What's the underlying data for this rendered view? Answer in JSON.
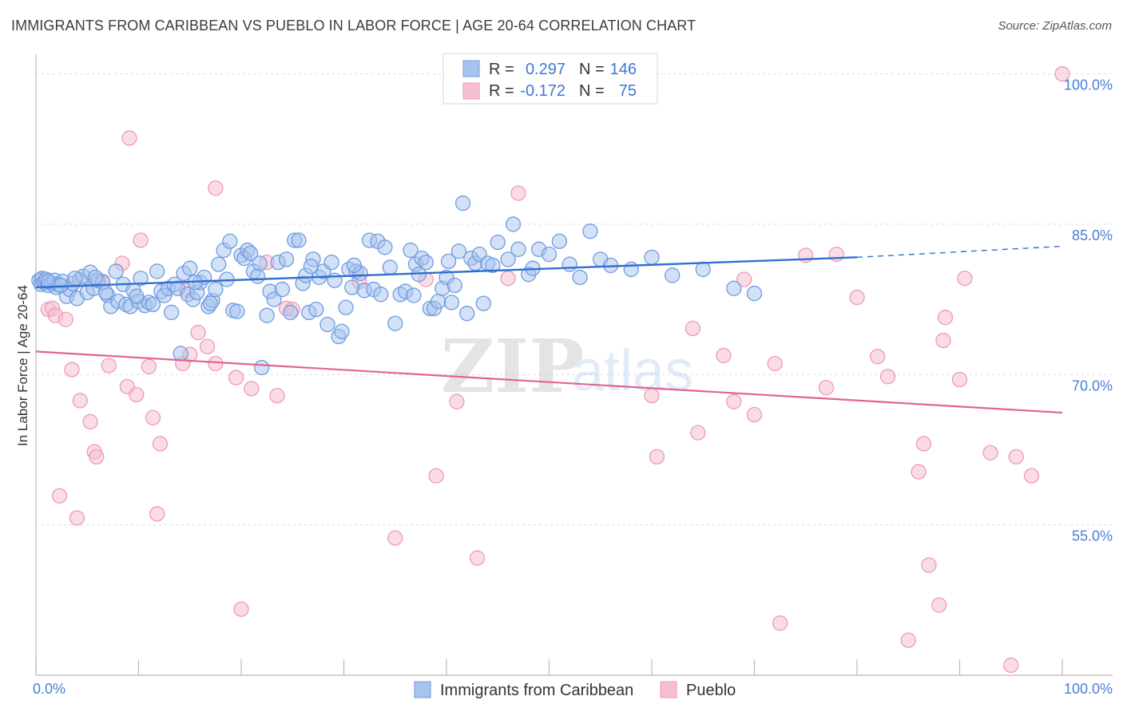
{
  "title": "IMMIGRANTS FROM CARIBBEAN VS PUEBLO IN LABOR FORCE | AGE 20-64 CORRELATION CHART",
  "source": "Source: ZipAtlas.com",
  "watermark": {
    "zip": "ZIP",
    "atlas": "atlas"
  },
  "colors": {
    "blue_fill": "#a8c4ee",
    "blue_stroke": "#6f9be0",
    "blue_line": "#2f6fd0",
    "pink_fill": "#f6bfd0",
    "pink_stroke": "#ee9ab5",
    "pink_line": "#e2648f",
    "tick_text": "#4a7fd6",
    "grid": "#dcdcdc"
  },
  "legend": {
    "rows": [
      {
        "r_label": "R =",
        "r_value": "0.297",
        "n_label": "N =",
        "n_value": "146"
      },
      {
        "r_label": "R =",
        "r_value": "-0.172",
        "n_label": "N =",
        "n_value": "75"
      }
    ]
  },
  "bottom_legend": {
    "series1": "Immigrants from Caribbean",
    "series2": "Pueblo"
  },
  "chart_data": {
    "type": "scatter",
    "xlabel": "",
    "ylabel": "In Labor Force | Age 20-64",
    "xlim": [
      0,
      100
    ],
    "ylim": [
      40,
      101
    ],
    "x_tick_labels": [
      "0.0%",
      "100.0%"
    ],
    "y_ticks": [
      55,
      70,
      85,
      100
    ],
    "y_tick_labels": [
      "55.0%",
      "70.0%",
      "85.0%",
      "100.0%"
    ],
    "series": [
      {
        "name": "Immigrants from Caribbean",
        "R": 0.297,
        "N": 146,
        "trend": {
          "x0": 0,
          "y0": 78.7,
          "x1": 80,
          "y1": 81.7,
          "dashed_to_x": 100,
          "dashed_to_y": 82.8
        },
        "points": [
          [
            0.3,
            79.4
          ],
          [
            0.5,
            79.0
          ],
          [
            0.6,
            79.6
          ],
          [
            0.8,
            79.2
          ],
          [
            1.0,
            79.5
          ],
          [
            1.2,
            78.9
          ],
          [
            1.5,
            79.1
          ],
          [
            1.8,
            79.4
          ],
          [
            2.0,
            78.7
          ],
          [
            2.2,
            79.0
          ],
          [
            2.6,
            79.3
          ],
          [
            3.0,
            77.8
          ],
          [
            3.3,
            78.5
          ],
          [
            3.6,
            79.1
          ],
          [
            4.0,
            77.6
          ],
          [
            4.3,
            79.5
          ],
          [
            4.6,
            79.8
          ],
          [
            5.0,
            78.2
          ],
          [
            5.3,
            80.2
          ],
          [
            5.6,
            78.6
          ],
          [
            6.0,
            79.4
          ],
          [
            6.5,
            79.2
          ],
          [
            7.0,
            77.9
          ],
          [
            7.3,
            76.8
          ],
          [
            7.8,
            80.3
          ],
          [
            8.0,
            77.3
          ],
          [
            8.5,
            79.0
          ],
          [
            8.8,
            77.0
          ],
          [
            9.2,
            76.8
          ],
          [
            9.5,
            78.4
          ],
          [
            10.0,
            77.3
          ],
          [
            10.2,
            79.6
          ],
          [
            10.6,
            76.9
          ],
          [
            11.0,
            77.2
          ],
          [
            11.4,
            77.0
          ],
          [
            11.8,
            80.3
          ],
          [
            12.2,
            78.3
          ],
          [
            12.5,
            77.9
          ],
          [
            12.9,
            78.6
          ],
          [
            13.2,
            76.2
          ],
          [
            13.5,
            79.0
          ],
          [
            13.8,
            78.6
          ],
          [
            14.1,
            72.1
          ],
          [
            14.4,
            80.1
          ],
          [
            14.8,
            78.0
          ],
          [
            15.0,
            80.6
          ],
          [
            15.3,
            77.5
          ],
          [
            15.7,
            78.2
          ],
          [
            16.0,
            79.2
          ],
          [
            16.4,
            79.7
          ],
          [
            16.8,
            76.8
          ],
          [
            17.2,
            77.4
          ],
          [
            17.5,
            78.5
          ],
          [
            17.8,
            81.0
          ],
          [
            18.3,
            82.4
          ],
          [
            18.6,
            79.5
          ],
          [
            18.9,
            83.3
          ],
          [
            19.2,
            76.4
          ],
          [
            19.6,
            76.3
          ],
          [
            20.0,
            81.9
          ],
          [
            20.3,
            81.6
          ],
          [
            20.6,
            82.4
          ],
          [
            20.9,
            82.1
          ],
          [
            21.2,
            80.3
          ],
          [
            21.6,
            79.8
          ],
          [
            22.0,
            70.7
          ],
          [
            22.5,
            75.9
          ],
          [
            22.8,
            78.3
          ],
          [
            23.2,
            77.5
          ],
          [
            23.6,
            81.2
          ],
          [
            24.0,
            78.5
          ],
          [
            24.4,
            81.5
          ],
          [
            24.8,
            76.2
          ],
          [
            25.2,
            83.4
          ],
          [
            25.6,
            83.4
          ],
          [
            26.0,
            79.1
          ],
          [
            26.3,
            79.9
          ],
          [
            26.6,
            76.2
          ],
          [
            27.0,
            81.5
          ],
          [
            27.3,
            76.5
          ],
          [
            27.6,
            79.7
          ],
          [
            28.0,
            80.3
          ],
          [
            28.4,
            75.0
          ],
          [
            28.8,
            81.2
          ],
          [
            29.1,
            79.4
          ],
          [
            29.5,
            73.8
          ],
          [
            29.8,
            74.3
          ],
          [
            30.2,
            76.7
          ],
          [
            30.5,
            80.5
          ],
          [
            30.8,
            78.7
          ],
          [
            31.2,
            80.3
          ],
          [
            31.6,
            80.1
          ],
          [
            32.0,
            78.4
          ],
          [
            32.5,
            83.4
          ],
          [
            32.9,
            78.5
          ],
          [
            33.3,
            83.3
          ],
          [
            33.6,
            78.0
          ],
          [
            34.0,
            82.7
          ],
          [
            34.5,
            80.7
          ],
          [
            35.0,
            75.1
          ],
          [
            35.5,
            78.0
          ],
          [
            36.0,
            78.3
          ],
          [
            36.5,
            82.4
          ],
          [
            37.0,
            81.0
          ],
          [
            37.3,
            80.0
          ],
          [
            37.6,
            81.6
          ],
          [
            38.0,
            81.2
          ],
          [
            38.4,
            76.6
          ],
          [
            38.8,
            76.6
          ],
          [
            39.2,
            77.3
          ],
          [
            39.6,
            78.6
          ],
          [
            40.0,
            79.7
          ],
          [
            40.5,
            77.2
          ],
          [
            40.8,
            78.9
          ],
          [
            41.2,
            82.3
          ],
          [
            41.6,
            87.1
          ],
          [
            42.0,
            76.1
          ],
          [
            42.4,
            81.6
          ],
          [
            42.8,
            81.1
          ],
          [
            43.2,
            82.0
          ],
          [
            43.6,
            77.1
          ],
          [
            44.0,
            81.1
          ],
          [
            45.0,
            83.2
          ],
          [
            46.0,
            81.5
          ],
          [
            46.5,
            85.0
          ],
          [
            47.0,
            82.5
          ],
          [
            48.0,
            80.0
          ],
          [
            48.4,
            80.6
          ],
          [
            49.0,
            82.5
          ],
          [
            50.0,
            82.0
          ],
          [
            51.0,
            83.3
          ],
          [
            52.0,
            81.0
          ],
          [
            53.0,
            79.7
          ],
          [
            54.0,
            84.3
          ],
          [
            55.0,
            81.5
          ],
          [
            58.0,
            80.5
          ],
          [
            62.0,
            79.9
          ],
          [
            65.0,
            80.5
          ],
          [
            68.0,
            78.6
          ],
          [
            70.0,
            78.1
          ],
          [
            1.2,
            79.3
          ],
          [
            2.4,
            78.9
          ],
          [
            3.8,
            79.6
          ],
          [
            5.8,
            79.7
          ],
          [
            6.8,
            78.2
          ],
          [
            9.8,
            77.8
          ],
          [
            15.5,
            79.2
          ],
          [
            17.0,
            77.1
          ],
          [
            21.8,
            81.1
          ],
          [
            26.8,
            80.8
          ],
          [
            31.0,
            80.9
          ],
          [
            36.8,
            77.9
          ],
          [
            40.2,
            81.3
          ],
          [
            44.5,
            80.9
          ],
          [
            56.0,
            80.9
          ],
          [
            60.0,
            81.7
          ]
        ]
      },
      {
        "name": "Pueblo",
        "R": -0.172,
        "N": 75,
        "trend": {
          "x0": 0,
          "y0": 72.3,
          "x1": 100,
          "y1": 66.2
        },
        "points": [
          [
            0.5,
            79.5
          ],
          [
            1.2,
            76.5
          ],
          [
            1.6,
            76.6
          ],
          [
            1.9,
            75.9
          ],
          [
            2.3,
            57.9
          ],
          [
            2.9,
            75.5
          ],
          [
            3.5,
            70.5
          ],
          [
            4.0,
            55.7
          ],
          [
            4.3,
            67.4
          ],
          [
            5.3,
            65.3
          ],
          [
            5.7,
            62.3
          ],
          [
            5.9,
            61.8
          ],
          [
            6.5,
            79.3
          ],
          [
            7.1,
            70.9
          ],
          [
            8.4,
            81.1
          ],
          [
            8.9,
            68.8
          ],
          [
            9.1,
            93.6
          ],
          [
            9.8,
            68.0
          ],
          [
            10.2,
            83.4
          ],
          [
            11.0,
            70.8
          ],
          [
            11.4,
            65.7
          ],
          [
            11.8,
            56.1
          ],
          [
            12.1,
            63.1
          ],
          [
            14.3,
            71.1
          ],
          [
            14.7,
            78.4
          ],
          [
            15.0,
            72.0
          ],
          [
            15.8,
            74.2
          ],
          [
            16.7,
            72.8
          ],
          [
            17.5,
            71.1
          ],
          [
            17.5,
            88.6
          ],
          [
            19.5,
            69.7
          ],
          [
            20.0,
            46.6
          ],
          [
            21.0,
            68.6
          ],
          [
            22.5,
            81.2
          ],
          [
            23.5,
            67.9
          ],
          [
            24.4,
            76.6
          ],
          [
            25.0,
            76.5
          ],
          [
            31.5,
            79.3
          ],
          [
            35.0,
            53.7
          ],
          [
            38.0,
            79.5
          ],
          [
            39.0,
            59.9
          ],
          [
            41.0,
            67.3
          ],
          [
            43.0,
            51.7
          ],
          [
            46.0,
            79.6
          ],
          [
            47.0,
            88.1
          ],
          [
            60.0,
            67.9
          ],
          [
            60.5,
            61.8
          ],
          [
            64.0,
            74.6
          ],
          [
            64.5,
            64.2
          ],
          [
            67.0,
            71.9
          ],
          [
            68.0,
            67.3
          ],
          [
            69.0,
            79.5
          ],
          [
            70.0,
            66.0
          ],
          [
            72.0,
            71.1
          ],
          [
            72.5,
            45.2
          ],
          [
            75.0,
            81.9
          ],
          [
            77.0,
            68.7
          ],
          [
            78.0,
            82.0
          ],
          [
            80.0,
            77.7
          ],
          [
            82.0,
            71.8
          ],
          [
            83.0,
            69.8
          ],
          [
            85.0,
            43.5
          ],
          [
            86.0,
            60.3
          ],
          [
            86.5,
            63.1
          ],
          [
            87.0,
            51.0
          ],
          [
            88.0,
            47.0
          ],
          [
            88.4,
            73.4
          ],
          [
            88.6,
            75.7
          ],
          [
            90.0,
            69.5
          ],
          [
            90.5,
            79.6
          ],
          [
            93.0,
            62.2
          ],
          [
            95.0,
            41.0
          ],
          [
            95.5,
            61.8
          ],
          [
            97.0,
            59.9
          ],
          [
            100.0,
            100.0
          ]
        ]
      }
    ]
  }
}
